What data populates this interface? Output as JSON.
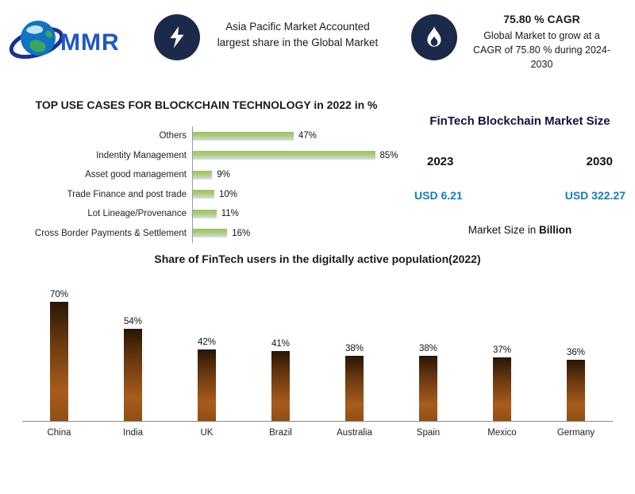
{
  "colors": {
    "value_blue": "#0f7ec0",
    "navy_circle": "#1b2a4a",
    "title_navy": "#12123a"
  },
  "header": {
    "logo": {
      "text": "MMR",
      "icon": "globe-logo"
    },
    "badge1": {
      "icon": "lightning-icon",
      "text": "Asia Pacific Market Accounted largest share in the Global Market"
    },
    "badge2": {
      "icon": "flame-icon",
      "title": "75.80 % CAGR",
      "text": "Global Market to grow at a CAGR of 75.80 % during 2024-2030"
    }
  },
  "market_size": {
    "title": "FinTech Blockchain Market Size",
    "year_left": "2023",
    "year_right": "2030",
    "value_left": "USD 6.21",
    "value_right": "USD 322.27",
    "note_prefix": "Market Size in ",
    "note_bold": "Billion"
  },
  "chart_data": [
    {
      "type": "bar",
      "orientation": "horizontal",
      "title": "TOP USE CASES FOR BLOCKCHAIN TECHNOLOGY in 2022 in %",
      "categories": [
        "Others",
        "Indentity Management",
        "Asset good management",
        "Trade Finance and post trade",
        "Lot Lineage/Provenance",
        "Cross Border Payments & Settlement"
      ],
      "values": [
        47,
        85,
        9,
        10,
        11,
        16
      ],
      "value_labels": [
        "47%",
        "85%",
        "9%",
        "10%",
        "11%",
        "16%"
      ],
      "xlim": [
        0,
        100
      ],
      "grid": false,
      "legend": "none"
    },
    {
      "type": "bar",
      "orientation": "vertical",
      "title": "Share of FinTech users in the digitally active population(2022)",
      "categories": [
        "China",
        "India",
        "UK",
        "Brazil",
        "Australia",
        "Spain",
        "Mexico",
        "Germany"
      ],
      "values": [
        70,
        54,
        42,
        41,
        38,
        38,
        37,
        36
      ],
      "value_labels": [
        "70%",
        "54%",
        "42%",
        "41%",
        "38%",
        "38%",
        "37%",
        "36%"
      ],
      "ylim": [
        0,
        80
      ],
      "grid": false,
      "legend": "none"
    }
  ]
}
